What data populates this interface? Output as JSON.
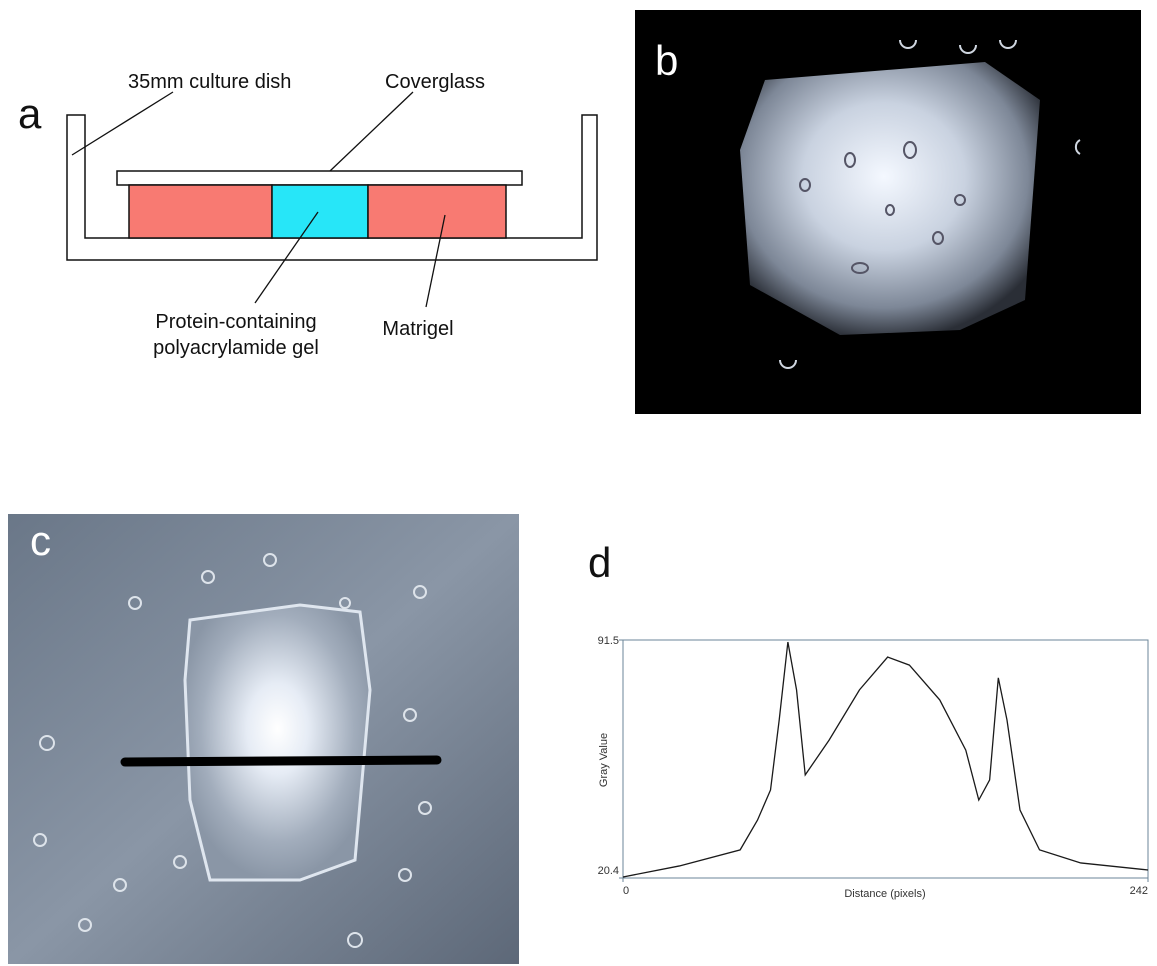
{
  "panels": {
    "a": {
      "letter": "a",
      "dish": "35mm culture dish",
      "coverglass": "Coverglass",
      "gel": [
        "Protein-containing",
        "polyacrylamide gel"
      ],
      "matrigel": "Matrigel"
    },
    "b": {
      "letter": "b"
    },
    "c": {
      "letter": "c"
    },
    "d": {
      "letter": "d"
    }
  },
  "chart_data": {
    "type": "line",
    "x_label": "Distance (pixels)",
    "y_label": "Gray Value",
    "x": [
      0,
      26,
      54,
      62,
      68,
      72,
      76,
      80,
      84,
      95,
      109,
      122,
      132,
      146,
      158,
      164,
      169,
      173,
      177,
      183,
      192,
      211,
      242
    ],
    "series": [
      {
        "color": "#1a1a1a",
        "values": [
          20.7,
          24,
          28.8,
          37.7,
          46.7,
          67.6,
          90.9,
          76.6,
          51.2,
          61.6,
          76.6,
          86.4,
          84,
          73.6,
          58.6,
          43.7,
          49.7,
          80.2,
          67.6,
          40.7,
          28.8,
          24.9,
          22.8
        ]
      }
    ],
    "xlim": [
      0,
      242
    ],
    "ylim": [
      20.4,
      91.5
    ],
    "xticks": [
      0,
      242
    ],
    "yticks": [
      20.4,
      91.5
    ],
    "grid": false
  }
}
